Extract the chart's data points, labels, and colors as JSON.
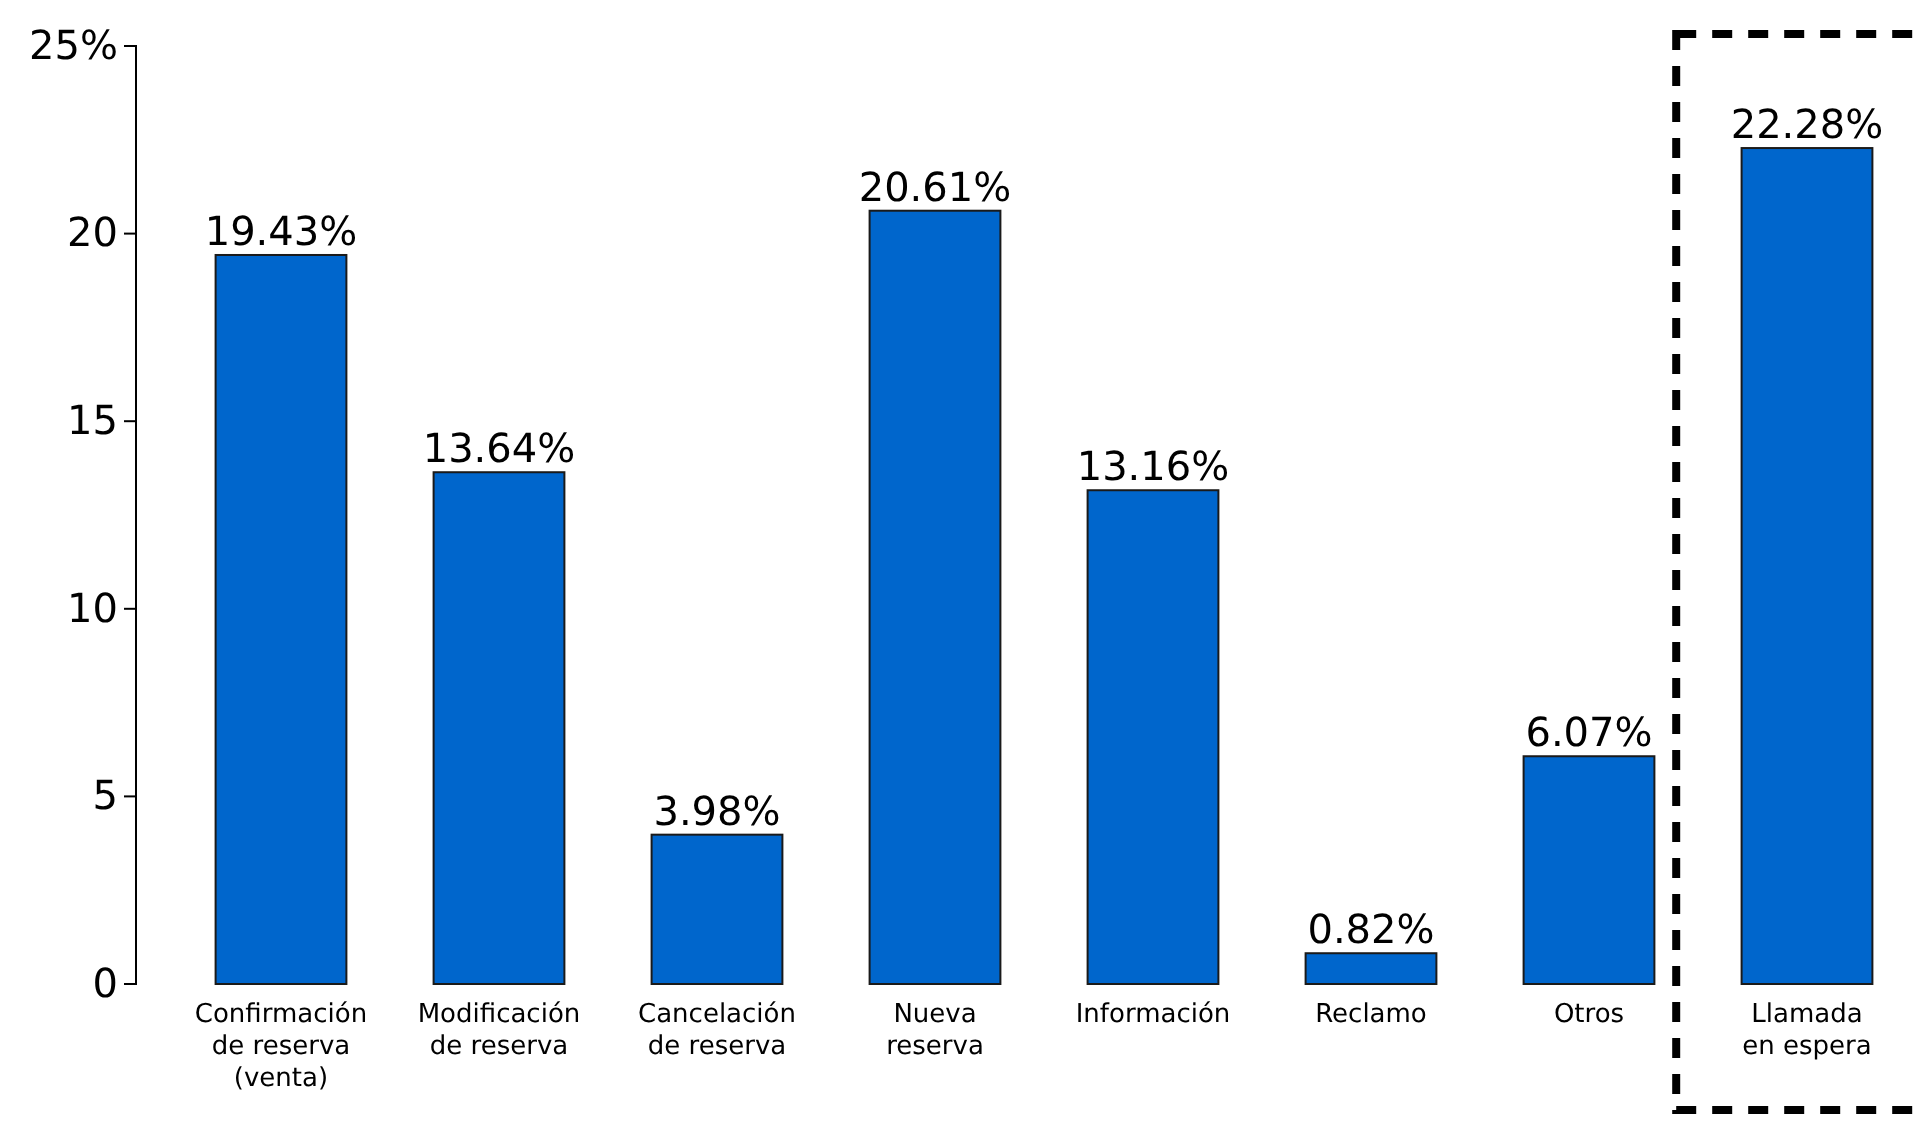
{
  "chart_data": {
    "type": "bar",
    "categories": [
      "Confirmación\nde reserva\n(venta)",
      "Modificación\nde reserva",
      "Cancelación\nde reserva",
      "Nueva\nreserva",
      "Información",
      "Reclamo",
      "Otros",
      "Llamada\nen espera"
    ],
    "values": [
      19.43,
      13.64,
      3.98,
      20.61,
      13.16,
      0.82,
      6.07,
      22.28
    ],
    "value_labels": [
      "19.43%",
      "13.64%",
      "3.98%",
      "20.61%",
      "13.16%",
      "0.82%",
      "6.07%",
      "22.28%"
    ],
    "color": "#0066cc",
    "ylim": [
      0,
      25
    ],
    "yticks": [
      0,
      5,
      10,
      15,
      20,
      {
        "value": 25,
        "label": "25%"
      }
    ],
    "grid": false
  }
}
